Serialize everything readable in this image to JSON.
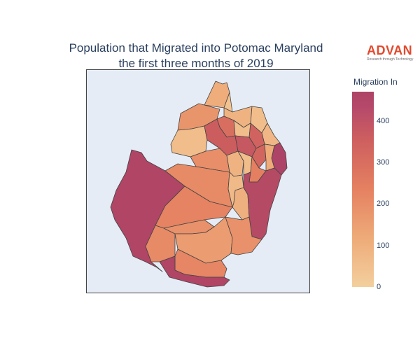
{
  "title": {
    "line1": "Population that Migrated into Potomac Maryland",
    "line2": "the first three months of 2019"
  },
  "logo": {
    "name": "ADVAN",
    "tagline": "Research through Technology",
    "color": "#e2492d"
  },
  "colorbar": {
    "title": "Migration In",
    "min": 0,
    "max": 470,
    "ticks": [
      "0",
      "100",
      "200",
      "300",
      "400"
    ],
    "colorscale": [
      "#f3cf9e",
      "#eeab79",
      "#e58161",
      "#ce5f5f",
      "#ad4366"
    ]
  },
  "map": {
    "background": "#e5ecf6",
    "border_color": "#444444",
    "regions": [
      {
        "id": "r1",
        "value": 110
      },
      {
        "id": "r2",
        "value": 40
      },
      {
        "id": "r3",
        "value": 90
      },
      {
        "id": "r4",
        "value": 180
      },
      {
        "id": "r5",
        "value": 60
      },
      {
        "id": "r6",
        "value": 300
      },
      {
        "id": "r7",
        "value": 200
      },
      {
        "id": "r8",
        "value": 60
      },
      {
        "id": "r9",
        "value": 340
      },
      {
        "id": "r10",
        "value": 380
      },
      {
        "id": "r11",
        "value": 120
      },
      {
        "id": "r12",
        "value": 470
      },
      {
        "id": "r13",
        "value": 210
      },
      {
        "id": "r14",
        "value": 230
      },
      {
        "id": "r15",
        "value": 90
      },
      {
        "id": "r16",
        "value": 60
      },
      {
        "id": "r17",
        "value": 80
      },
      {
        "id": "r18",
        "value": 160
      },
      {
        "id": "r19",
        "value": 330
      },
      {
        "id": "r20",
        "value": 190
      },
      {
        "id": "r21",
        "value": 460
      },
      {
        "id": "r22",
        "value": 210
      },
      {
        "id": "r23",
        "value": 220
      },
      {
        "id": "r24",
        "value": 70
      },
      {
        "id": "r25",
        "value": 100
      },
      {
        "id": "r26",
        "value": 190
      },
      {
        "id": "r27",
        "value": 440
      },
      {
        "id": "r28",
        "value": 240
      },
      {
        "id": "r29",
        "value": 60
      },
      {
        "id": "r30",
        "value": 360
      }
    ]
  }
}
